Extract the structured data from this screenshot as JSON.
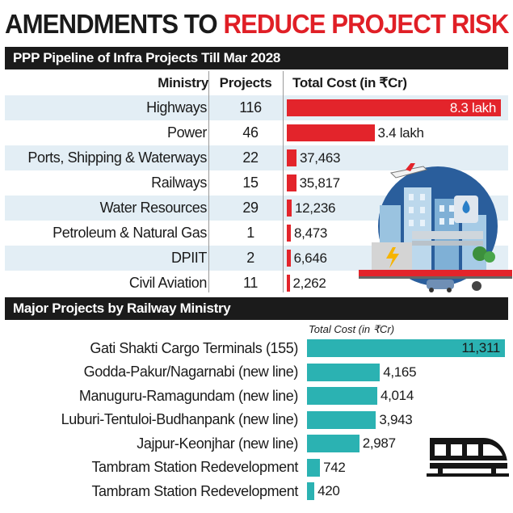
{
  "headline": {
    "part_a": "AMENDMENTS TO",
    "part_b": "REDUCE PROJECT RISK"
  },
  "section1": {
    "title": "PPP Pipeline of Infra Projects Till Mar 2028"
  },
  "section2": {
    "title": "Major Projects by Railway Ministry"
  },
  "colors": {
    "red_bar": "#e3242b",
    "teal_bar": "#2bb2b2",
    "shade_row": "#e3eef5",
    "section_bg": "#1b1b1b"
  },
  "icons": [
    "city-infrastructure-illustration",
    "metro-train-icon"
  ],
  "chart_data": [
    {
      "type": "table",
      "title": "PPP Pipeline of Infra Projects Till Mar 2028",
      "columns": [
        "Ministry",
        "Projects",
        "Total Cost (in ₹Cr)"
      ],
      "rows": [
        {
          "ministry": "Highways",
          "projects": "116",
          "cost_label": "8.3 lakh",
          "cost": 830000
        },
        {
          "ministry": "Power",
          "projects": "46",
          "cost_label": "3.4 lakh",
          "cost": 340000
        },
        {
          "ministry": "Ports, Shipping & Waterways",
          "projects": "22",
          "cost_label": "37,463",
          "cost": 37463
        },
        {
          "ministry": "Railways",
          "projects": "15",
          "cost_label": "35,817",
          "cost": 35817
        },
        {
          "ministry": "Water Resources",
          "projects": "29",
          "cost_label": "12,236",
          "cost": 12236
        },
        {
          "ministry": "Petroleum & Natural Gas",
          "projects": "1",
          "cost_label": "8,473",
          "cost": 8473
        },
        {
          "ministry": "DPIIT",
          "projects": "2",
          "cost_label": "6,646",
          "cost": 6646
        },
        {
          "ministry": "Civil Aviation",
          "projects": "11",
          "cost_label": "2,262",
          "cost": 2262
        }
      ]
    },
    {
      "type": "bar",
      "orientation": "horizontal",
      "title": "Major Projects by Railway Ministry",
      "xlabel": "Total Cost (in ₹Cr)",
      "categories": [
        "Gati Shakti Cargo Terminals (155)",
        "Godda-Pakur/Nagarnabi (new line)",
        "Manuguru-Ramagundam (new line)",
        "Luburi-Tentuloi-Budhanpank (new line)",
        "Jajpur-Keonjhar (new line)",
        "Tambram Station Redevelopment",
        "Tambram Station Redevelopment"
      ],
      "values": [
        11311,
        4165,
        4014,
        3943,
        2987,
        742,
        420
      ],
      "value_labels": [
        "11,311",
        "4,165",
        "4,014",
        "3,943",
        "2,987",
        "742",
        "420"
      ]
    }
  ]
}
